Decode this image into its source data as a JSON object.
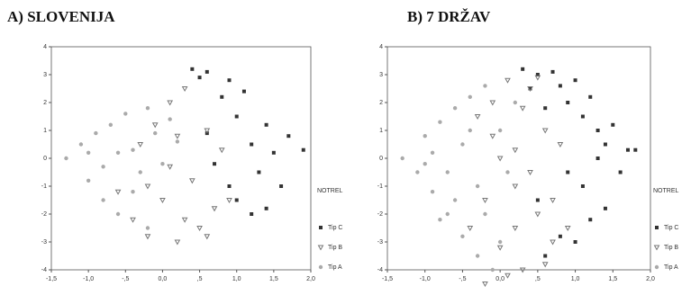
{
  "chart_data": [
    {
      "type": "scatter",
      "title": "A) SLOVENIJA",
      "legend_title": "NOTREL",
      "xlim": [
        -1.5,
        2.0
      ],
      "ylim": [
        -4,
        4
      ],
      "xticks": [
        {
          "value": -1.5,
          "label": "-1,5"
        },
        {
          "value": -1.0,
          "label": "-1,0"
        },
        {
          "value": -0.5,
          "label": "-,5"
        },
        {
          "value": 0.0,
          "label": "0,0"
        },
        {
          "value": 0.5,
          "label": ",5"
        },
        {
          "value": 1.0,
          "label": "1,0"
        },
        {
          "value": 1.5,
          "label": "1,5"
        },
        {
          "value": 2.0,
          "label": "2,0"
        }
      ],
      "yticks": [
        4,
        3,
        2,
        1,
        0,
        -1,
        -2,
        -3,
        -4
      ],
      "series": [
        {
          "name": "Tip C",
          "color": "#333333",
          "x": [
            0.4,
            0.5,
            0.6,
            0.8,
            0.9,
            1.0,
            1.1,
            1.2,
            1.3,
            1.4,
            1.5,
            1.6,
            1.7,
            1.9,
            0.7,
            1.0,
            1.2,
            0.9,
            1.4,
            0.6
          ],
          "values": [
            3.2,
            2.9,
            3.1,
            2.2,
            2.8,
            1.5,
            2.4,
            0.5,
            -0.5,
            1.2,
            0.2,
            -1.0,
            0.8,
            0.3,
            -0.2,
            -1.5,
            -2.0,
            -1.0,
            -1.8,
            0.9
          ]
        },
        {
          "name": "Tip B",
          "color": "#777777",
          "x": [
            -0.6,
            -0.4,
            -0.3,
            -0.2,
            -0.1,
            0.0,
            0.1,
            0.2,
            0.3,
            0.4,
            0.5,
            0.6,
            0.7,
            0.8,
            0.2,
            0.1,
            -0.2,
            0.3,
            0.6,
            0.9
          ],
          "values": [
            -1.2,
            -2.2,
            0.5,
            -2.8,
            1.2,
            -1.5,
            2.0,
            -3.0,
            2.5,
            -0.8,
            -2.5,
            1.0,
            -1.8,
            0.3,
            0.8,
            -0.3,
            -1.0,
            -2.2,
            -2.8,
            -1.5
          ]
        },
        {
          "name": "Tip A",
          "color": "#aaaaaa",
          "x": [
            -1.3,
            -1.1,
            -1.0,
            -0.9,
            -0.8,
            -0.7,
            -0.6,
            -0.5,
            -0.4,
            -0.3,
            -0.2,
            -0.1,
            0.0,
            0.1,
            -0.6,
            -0.8,
            -0.4,
            -1.0,
            -0.2,
            0.2
          ],
          "values": [
            0.0,
            0.5,
            -0.8,
            0.9,
            -1.5,
            1.2,
            -2.0,
            1.6,
            0.3,
            -0.5,
            1.8,
            0.9,
            -0.2,
            1.4,
            0.2,
            -0.3,
            -1.2,
            0.2,
            -2.5,
            0.6
          ]
        }
      ]
    },
    {
      "type": "scatter",
      "title": "B) 7 DRŽAV",
      "legend_title": "NOTREL",
      "xlim": [
        -1.5,
        2.0
      ],
      "ylim": [
        -4,
        4
      ],
      "xticks": [
        {
          "value": -1.5,
          "label": "-1,5"
        },
        {
          "value": -1.0,
          "label": "-1,0"
        },
        {
          "value": -0.5,
          "label": "-,5"
        },
        {
          "value": 0.0,
          "label": "0,0"
        },
        {
          "value": 0.5,
          "label": ",5"
        },
        {
          "value": 1.0,
          "label": "1,0"
        },
        {
          "value": 1.5,
          "label": "1,5"
        },
        {
          "value": 2.0,
          "label": "2,0"
        }
      ],
      "yticks": [
        4,
        3,
        2,
        1,
        0,
        -1,
        -2,
        -3,
        -4
      ],
      "series": [
        {
          "name": "Tip C",
          "color": "#333333",
          "x": [
            0.3,
            0.4,
            0.5,
            0.6,
            0.7,
            0.8,
            0.9,
            1.0,
            1.1,
            1.2,
            1.3,
            1.4,
            1.5,
            1.6,
            1.7,
            1.8,
            0.5,
            0.8,
            1.0,
            1.2,
            1.4,
            0.6,
            0.9,
            1.1,
            1.3
          ],
          "values": [
            3.2,
            2.5,
            3.0,
            1.8,
            3.1,
            2.6,
            2.0,
            2.8,
            1.5,
            2.2,
            1.0,
            0.5,
            1.2,
            -0.5,
            0.3,
            0.3,
            -1.5,
            -2.8,
            -3.0,
            -2.2,
            -1.8,
            -3.5,
            -0.5,
            -1.0,
            0.0
          ]
        },
        {
          "name": "Tip B",
          "color": "#777777",
          "x": [
            -0.4,
            -0.3,
            -0.2,
            -0.1,
            0.0,
            0.1,
            0.2,
            0.3,
            0.4,
            0.5,
            0.6,
            0.7,
            0.8,
            0.0,
            0.2,
            0.4,
            -0.2,
            0.6,
            0.3,
            0.1,
            -0.1,
            0.5,
            0.7,
            0.9,
            0.2
          ],
          "values": [
            -2.5,
            1.5,
            -4.5,
            2.0,
            -3.2,
            2.8,
            -1.0,
            -4.0,
            2.5,
            -2.0,
            1.0,
            -3.0,
            0.5,
            0.0,
            -2.5,
            -0.5,
            -1.5,
            -3.8,
            1.8,
            -4.2,
            0.8,
            2.9,
            -1.5,
            -2.5,
            0.3
          ]
        },
        {
          "name": "Tip A",
          "color": "#aaaaaa",
          "x": [
            -1.1,
            -1.0,
            -0.9,
            -0.8,
            -0.7,
            -0.6,
            -0.5,
            -0.4,
            -0.3,
            -0.2,
            -0.1,
            0.0,
            0.1,
            -1.3,
            -0.9,
            -0.7,
            -0.5,
            -0.3,
            -0.6,
            -0.8,
            -0.4,
            -0.2,
            0.0,
            -1.0,
            0.2
          ],
          "values": [
            -0.5,
            0.8,
            -1.2,
            1.3,
            -2.0,
            1.8,
            -2.8,
            2.2,
            -3.5,
            2.6,
            -4.0,
            1.0,
            -0.5,
            0.0,
            0.2,
            -0.5,
            0.5,
            -1.0,
            -1.5,
            -2.2,
            1.0,
            -2.0,
            -3.0,
            -0.2,
            2.0
          ]
        }
      ]
    }
  ]
}
